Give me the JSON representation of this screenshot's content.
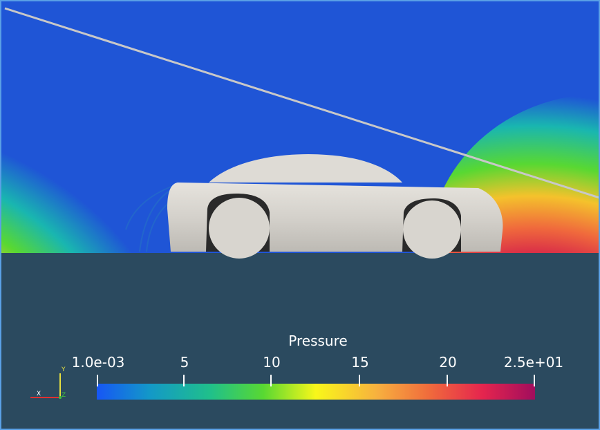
{
  "viewer": {
    "background_color": "#2b4a5f",
    "border_color": "#5aa0e6",
    "scene": {
      "object": "car-body",
      "surface_color": "#d9d6d0",
      "slice_colors": {
        "low": "#1f55d6",
        "mid_low": "#19b6b0",
        "mid": "#e6f018",
        "mid_high": "#f4a22c",
        "high": "#d4204a",
        "max": "#a8105c"
      }
    },
    "colorbar": {
      "title": "Pressure",
      "range": [
        0.001,
        25
      ],
      "ticks": [
        {
          "value": 0.001,
          "label": "1.0e-03"
        },
        {
          "value": 5,
          "label": "5"
        },
        {
          "value": 10,
          "label": "10"
        },
        {
          "value": 15,
          "label": "15"
        },
        {
          "value": 20,
          "label": "20"
        },
        {
          "value": 25,
          "label": "2.5e+01"
        }
      ],
      "colormap": [
        "#1656f5",
        "#1398c8",
        "#20c08a",
        "#58d832",
        "#f8f71a",
        "#f7b03f",
        "#f06a3c",
        "#e5254e",
        "#a10d5d"
      ]
    },
    "axes": {
      "y_label": "Y",
      "x_label": "X",
      "z_label": "Z",
      "y_color": "#e6e040",
      "x_color": "#e03030",
      "z_color": "#40c040"
    }
  }
}
